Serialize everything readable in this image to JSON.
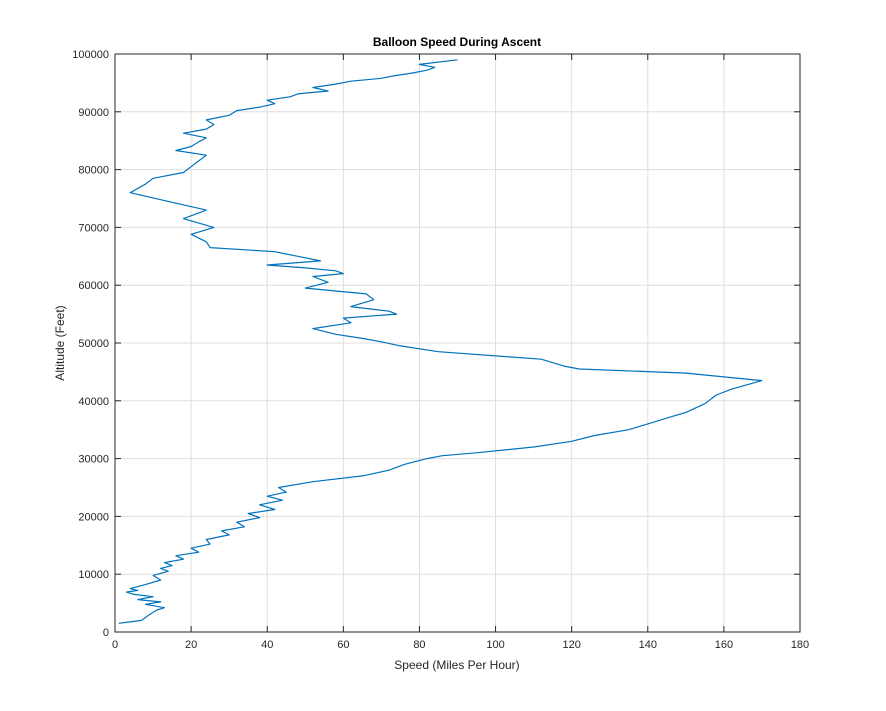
{
  "chart_data": {
    "type": "line",
    "title": "Balloon Speed During Ascent",
    "xlabel": "Speed (Miles Per Hour)",
    "ylabel": "Altitude (Feet)",
    "xlim": [
      0,
      180
    ],
    "ylim": [
      0,
      100000
    ],
    "xticks": [
      0,
      20,
      40,
      60,
      80,
      100,
      120,
      140,
      160,
      180
    ],
    "yticks": [
      0,
      10000,
      20000,
      30000,
      40000,
      50000,
      60000,
      70000,
      80000,
      90000,
      100000
    ],
    "grid": true,
    "series": [
      {
        "color": "#0072bd",
        "x": [
          1,
          7,
          9,
          11,
          13,
          8,
          12,
          6,
          10,
          5,
          3,
          6,
          4,
          8,
          12,
          10,
          14,
          12,
          15,
          13,
          18,
          16,
          22,
          20,
          25,
          24,
          30,
          28,
          34,
          32,
          38,
          35,
          42,
          38,
          44,
          40,
          45,
          43,
          52,
          65,
          72,
          76,
          82,
          86,
          95,
          110,
          120,
          126,
          135,
          140,
          145,
          150,
          155,
          157,
          158,
          162,
          170,
          150,
          122,
          118,
          112,
          85,
          75,
          70,
          65,
          58,
          52,
          62,
          60,
          74,
          72,
          62,
          68,
          66,
          50,
          56,
          52,
          60,
          58,
          50,
          40,
          54,
          48,
          42,
          25,
          24,
          20,
          26,
          18,
          24,
          14,
          4,
          8,
          10,
          18,
          20,
          22,
          24,
          16,
          20,
          22,
          24,
          18,
          24,
          26,
          24,
          30,
          32,
          38,
          42,
          40,
          46,
          48,
          56,
          52,
          58,
          62,
          70,
          73,
          78,
          82,
          84,
          80,
          90
        ],
        "y": [
          1500,
          2000,
          3000,
          3800,
          4200,
          4800,
          5200,
          5600,
          6100,
          6500,
          6900,
          7200,
          7500,
          8200,
          9000,
          9800,
          10500,
          11000,
          11500,
          12000,
          12600,
          13200,
          13800,
          14500,
          15200,
          16000,
          16800,
          17500,
          18200,
          19000,
          19800,
          20500,
          21200,
          22000,
          22800,
          23500,
          24200,
          25000,
          26000,
          27000,
          28000,
          29000,
          30000,
          30500,
          31000,
          32000,
          33000,
          34000,
          35000,
          36000,
          37000,
          38000,
          39500,
          40500,
          41000,
          42000,
          43500,
          44800,
          45500,
          46000,
          47200,
          48500,
          49500,
          50200,
          50800,
          51500,
          52500,
          53500,
          54300,
          55000,
          55500,
          56300,
          57500,
          58500,
          59500,
          60500,
          61500,
          62000,
          62500,
          63000,
          63500,
          64200,
          65000,
          65800,
          66500,
          67500,
          68800,
          70000,
          71500,
          73000,
          74500,
          76000,
          77500,
          78500,
          79500,
          80500,
          81500,
          82500,
          83300,
          84000,
          84800,
          85500,
          86300,
          87000,
          87800,
          88600,
          89400,
          90200,
          90800,
          91400,
          92000,
          92600,
          93100,
          93600,
          94200,
          94800,
          95300,
          95800,
          96200,
          96700,
          97200,
          97700,
          98200,
          99000
        ]
      }
    ]
  }
}
